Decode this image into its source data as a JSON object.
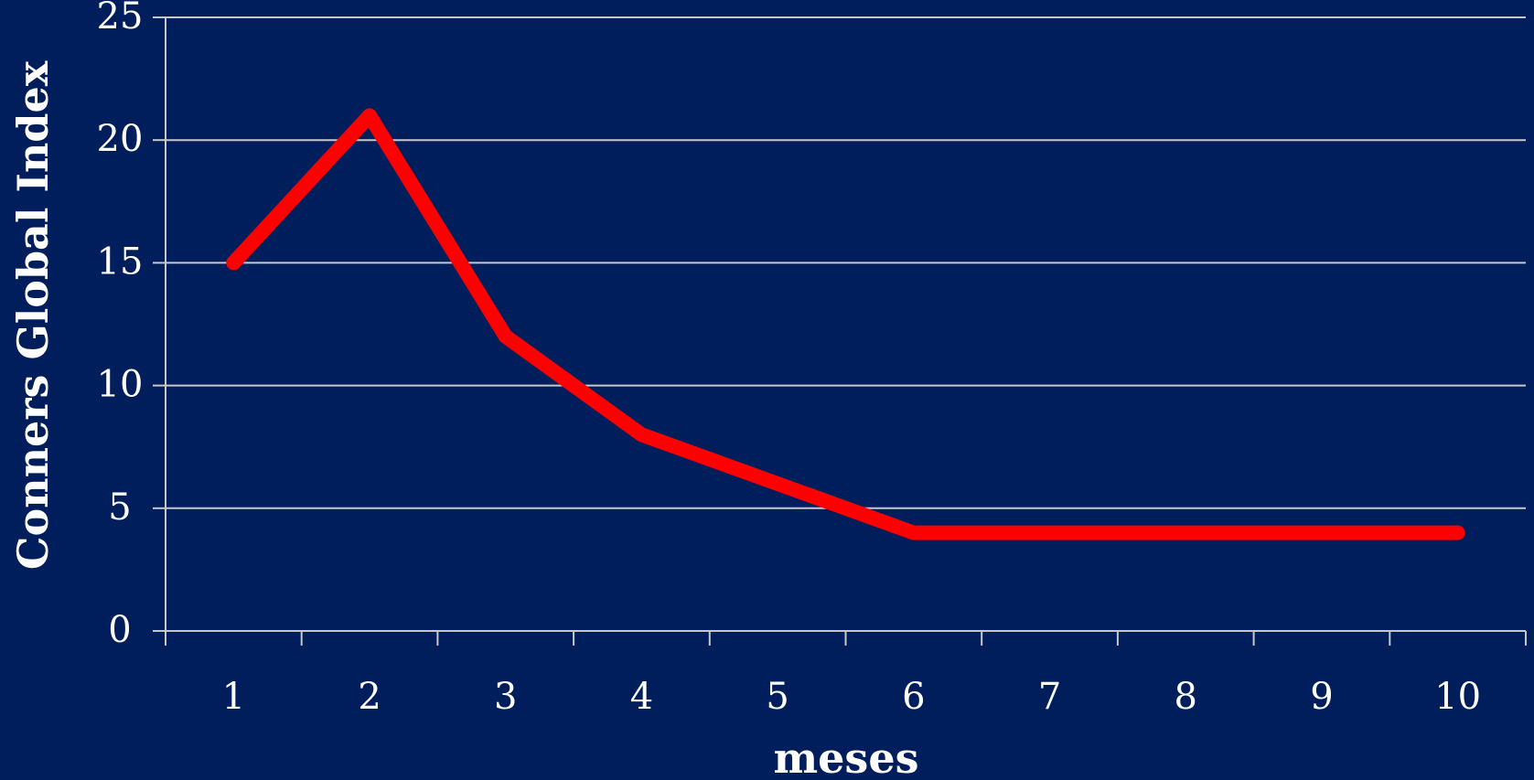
{
  "colors": {
    "background": "#001e5c",
    "line": "#ff0000",
    "axis": "#c8c8c8",
    "text": "#ffffff"
  },
  "chart_data": {
    "type": "line",
    "title": "",
    "xlabel": "meses",
    "ylabel": "Conners Global Index",
    "categories": [
      "1",
      "2",
      "3",
      "4",
      "5",
      "6",
      "7",
      "8",
      "9",
      "10"
    ],
    "series": [
      {
        "values": [
          15,
          21,
          12,
          8,
          6,
          4,
          4,
          4,
          4,
          4
        ]
      }
    ],
    "ylim": [
      0,
      25
    ],
    "yticks": [
      "0",
      "5",
      "10",
      "15",
      "20",
      "25"
    ],
    "grid": true,
    "legend": "none"
  }
}
